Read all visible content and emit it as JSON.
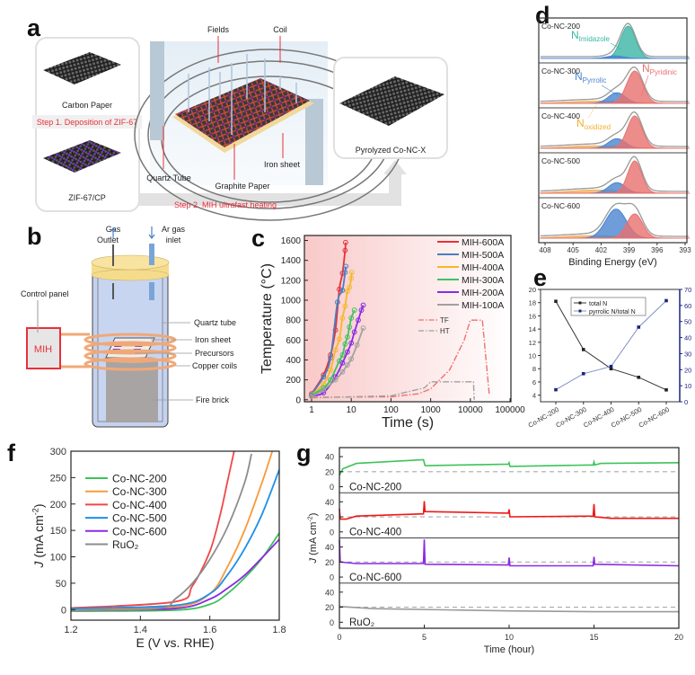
{
  "panel_labels": {
    "a": "a",
    "b": "b",
    "c": "c",
    "d": "d",
    "e": "e",
    "f": "f",
    "g": "g"
  },
  "panel_a": {
    "carbon_paper": "Carbon Paper",
    "step1": "Step 1. Deposition of ZIF-67",
    "zif_cp": "ZIF-67/CP",
    "fields": "Fields",
    "coil": "Coil",
    "quartz_tube": "Quartz Tube",
    "graphite_paper": "Graphite Paper",
    "iron_sheet": "Iron sheet",
    "pyrolyzed": "Pyrolyzed Co-NC-X",
    "step2": "Step 2. MIH ultrafast heating"
  },
  "panel_b": {
    "gas_outlet_1": "Gas",
    "gas_outlet_2": "Outlet",
    "ar_inlet_1": "Ar gas",
    "ar_inlet_2": "inlet",
    "control_panel": "Control panel",
    "mih": "MIH",
    "quartz_tube": "Quartz tube",
    "iron_sheet": "Iron sheet",
    "precursors": "Precursors",
    "copper_coils": "Copper coils",
    "fire_brick": "Fire brick"
  },
  "colors": {
    "red": "#e8303a",
    "green": "#3cc45a",
    "orange": "#f79a3a",
    "blue": "#1e8ee8",
    "purple": "#8a2be2",
    "gray": "#9a9a9a",
    "teal": "#3ab5a5",
    "pyridinic": "#e8706e",
    "pyrrolic": "#4a84d0",
    "oxidized": "#f0b060"
  },
  "chart_data": [
    {
      "panel": "c",
      "type": "line",
      "xlabel": "Time (s)",
      "ylabel": "Temperature (°C)",
      "xscale": "log",
      "xlim": [
        0.66,
        105000
      ],
      "ylim": [
        -20,
        1650
      ],
      "xticks": [
        1,
        10,
        100,
        1000,
        10000,
        100000
      ],
      "xtick_labels": [
        "1",
        "10",
        "100",
        "1000",
        "10000",
        "100000"
      ],
      "yticks": [
        0,
        200,
        400,
        600,
        800,
        1000,
        1200,
        1400,
        1600
      ],
      "legend": "top-right",
      "series": [
        {
          "name": "MIH-600A",
          "color": "#e8303a",
          "markers": true,
          "points": [
            [
              1,
              60
            ],
            [
              2,
              250
            ],
            [
              3,
              450
            ],
            [
              4,
              700
            ],
            [
              5,
              1110
            ],
            [
              6,
              1270
            ],
            [
              7,
              1500
            ],
            [
              7.2,
              1580
            ]
          ]
        },
        {
          "name": "MIH-500A",
          "color": "#4a7fc0",
          "markers": true,
          "points": [
            [
              1,
              55
            ],
            [
              2,
              230
            ],
            [
              3,
              420
            ],
            [
              4.5,
              980
            ],
            [
              6,
              1100
            ],
            [
              7,
              1280
            ],
            [
              7.3,
              1340
            ]
          ]
        },
        {
          "name": "MIH-400A",
          "color": "#f5b82a",
          "markers": true,
          "points": [
            [
              1,
              50
            ],
            [
              2,
              160
            ],
            [
              3,
              300
            ],
            [
              4,
              500
            ],
            [
              5,
              610
            ],
            [
              6,
              820
            ],
            [
              7,
              940
            ],
            [
              8,
              1090
            ],
            [
              9,
              1130
            ],
            [
              10,
              1220
            ],
            [
              10.3,
              1280
            ]
          ]
        },
        {
          "name": "MIH-300A",
          "color": "#3cc45a",
          "markers": true,
          "points": [
            [
              1,
              45
            ],
            [
              2,
              120
            ],
            [
              3,
              200
            ],
            [
              5,
              390
            ],
            [
              6,
              450
            ],
            [
              7,
              560
            ],
            [
              8,
              630
            ],
            [
              9,
              730
            ],
            [
              10,
              820
            ],
            [
              12,
              900
            ]
          ]
        },
        {
          "name": "MIH-200A",
          "color": "#8a2be2",
          "markers": true,
          "points": [
            [
              1,
              40
            ],
            [
              2,
              70
            ],
            [
              4,
              230
            ],
            [
              6,
              370
            ],
            [
              8,
              480
            ],
            [
              10,
              570
            ],
            [
              12,
              680
            ],
            [
              15,
              800
            ],
            [
              18,
              900
            ],
            [
              20,
              950
            ]
          ]
        },
        {
          "name": "MIH-100A",
          "color": "#a0a0a0",
          "markers": true,
          "points": [
            [
              1,
              35
            ],
            [
              2,
              100
            ],
            [
              4,
              200
            ],
            [
              6,
              280
            ],
            [
              8,
              350
            ],
            [
              10,
              410
            ],
            [
              14,
              550
            ],
            [
              20,
              720
            ]
          ]
        },
        {
          "name": "TF",
          "color": "#f07070",
          "dash": "dashdot",
          "markers": false,
          "points": [
            [
              1,
              25
            ],
            [
              100,
              30
            ],
            [
              500,
              60
            ],
            [
              1000,
              110
            ],
            [
              3000,
              300
            ],
            [
              7000,
              600
            ],
            [
              10000,
              800
            ],
            [
              20000,
              800
            ],
            [
              30000,
              50
            ]
          ]
        },
        {
          "name": "HT",
          "color": "#a0a0a0",
          "dash": "dashdot",
          "markers": false,
          "points": [
            [
              1,
              20
            ],
            [
              100,
              40
            ],
            [
              700,
              120
            ],
            [
              1000,
              180
            ],
            [
              10000,
              180
            ],
            [
              12000,
              180
            ],
            [
              12500,
              0
            ]
          ]
        }
      ]
    },
    {
      "panel": "d",
      "type": "area",
      "xlabel": "Binding Energy (eV)",
      "xlim": [
        408,
        393
      ],
      "xticks": [
        408,
        405,
        402,
        399,
        396,
        393
      ],
      "annotations": {
        "imidazole": {
          "base": "N",
          "sub": "Imidazole"
        },
        "pyrrolic": {
          "base": "N",
          "sub": "Pyrrolic"
        },
        "pyridinic": {
          "base": "N",
          "sub": "Pyridinic"
        },
        "oxidized": {
          "base": "N",
          "sub": "oxidized"
        }
      },
      "samples": [
        {
          "name": "Co-NC-200",
          "components": [
            {
              "type": "imidazole",
              "center": 399.1,
              "height": 1.0,
              "width": 0.8
            },
            {
              "type": "pyrrolic",
              "center": 400.5,
              "height": 0.08,
              "width": 0.9
            }
          ]
        },
        {
          "name": "Co-NC-300",
          "components": [
            {
              "type": "oxidized",
              "center": 402.5,
              "height": 0.07,
              "width": 3
            },
            {
              "type": "pyrrolic",
              "center": 400.3,
              "height": 0.33,
              "width": 0.9
            },
            {
              "type": "pyridinic",
              "center": 398.4,
              "height": 1.0,
              "width": 0.85
            }
          ]
        },
        {
          "name": "Co-NC-400",
          "components": [
            {
              "type": "oxidized",
              "center": 402.5,
              "height": 0.08,
              "width": 3
            },
            {
              "type": "pyrrolic",
              "center": 400.3,
              "height": 0.3,
              "width": 0.9
            },
            {
              "type": "pyridinic",
              "center": 398.4,
              "height": 1.0,
              "width": 0.8
            }
          ]
        },
        {
          "name": "Co-NC-500",
          "components": [
            {
              "type": "oxidized",
              "center": 402.5,
              "height": 0.1,
              "width": 3
            },
            {
              "type": "pyrrolic",
              "center": 400.3,
              "height": 0.33,
              "width": 0.9
            },
            {
              "type": "pyridinic",
              "center": 398.4,
              "height": 1.0,
              "width": 0.75
            }
          ]
        },
        {
          "name": "Co-NC-600",
          "components": [
            {
              "type": "oxidized",
              "center": 403,
              "height": 0.08,
              "width": 3
            },
            {
              "type": "pyrrolic",
              "center": 400.4,
              "height": 0.9,
              "width": 1.1
            },
            {
              "type": "pyridinic",
              "center": 398.4,
              "height": 0.75,
              "width": 0.85
            }
          ]
        }
      ]
    },
    {
      "panel": "e",
      "type": "line",
      "categories": [
        "Co-NC-200",
        "Co-NC-300",
        "Co-NC-400",
        "Co-NC-500",
        "Co-NC-600"
      ],
      "ylim_left": [
        3,
        20
      ],
      "yticks_left": [
        4,
        6,
        8,
        10,
        12,
        14,
        16,
        18,
        20
      ],
      "ylim_right": [
        0,
        70
      ],
      "yticks_right": [
        0,
        10,
        20,
        30,
        40,
        50,
        60,
        70
      ],
      "legend": "top-center",
      "series": [
        {
          "name": "total N",
          "axis": "left",
          "color": "#333333",
          "values": [
            18.2,
            10.9,
            8.0,
            6.7,
            4.8
          ]
        },
        {
          "name": "pyrrolic N/total N",
          "axis": "right",
          "color": "#8090c8",
          "values": [
            7.5,
            17.5,
            22,
            46.5,
            63
          ]
        }
      ]
    },
    {
      "panel": "f",
      "type": "line",
      "xlabel": "E (V vs. RHE)",
      "ylabel": {
        "italic": "J",
        "text": " (mA cm",
        "sup": "-2",
        "close": ")"
      },
      "xlim": [
        1.2,
        1.8
      ],
      "ylim": [
        -20,
        300
      ],
      "xticks": [
        1.2,
        1.4,
        1.6,
        1.8
      ],
      "xtick_labels": [
        "1.2",
        "1.4",
        "1.6",
        "1.8"
      ],
      "yticks": [
        0,
        50,
        100,
        150,
        200,
        250,
        300
      ],
      "legend": "top-left",
      "series": [
        {
          "name": "Co-NC-200",
          "color": "#3cc45a",
          "points": [
            [
              1.2,
              -3
            ],
            [
              1.5,
              -1
            ],
            [
              1.6,
              10
            ],
            [
              1.65,
              30
            ],
            [
              1.7,
              60
            ],
            [
              1.75,
              97
            ],
            [
              1.8,
              145
            ]
          ]
        },
        {
          "name": "Co-NC-300",
          "color": "#f79a3a",
          "points": [
            [
              1.2,
              0
            ],
            [
              1.5,
              5
            ],
            [
              1.6,
              30
            ],
            [
              1.65,
              80
            ],
            [
              1.7,
              150
            ],
            [
              1.75,
              240
            ],
            [
              1.78,
              300
            ]
          ]
        },
        {
          "name": "Co-NC-400",
          "color": "#f04848",
          "points": [
            [
              1.2,
              3
            ],
            [
              1.5,
              15
            ],
            [
              1.55,
              45
            ],
            [
              1.6,
              110
            ],
            [
              1.63,
              180
            ],
            [
              1.65,
              240
            ],
            [
              1.67,
              300
            ]
          ]
        },
        {
          "name": "Co-NC-500",
          "color": "#1e8ee8",
          "points": [
            [
              1.2,
              2
            ],
            [
              1.5,
              8
            ],
            [
              1.6,
              30
            ],
            [
              1.65,
              65
            ],
            [
              1.7,
              115
            ],
            [
              1.75,
              180
            ],
            [
              1.8,
              265
            ]
          ]
        },
        {
          "name": "Co-NC-600",
          "color": "#8a2be2",
          "points": [
            [
              1.2,
              -2
            ],
            [
              1.5,
              2
            ],
            [
              1.6,
              20
            ],
            [
              1.65,
              40
            ],
            [
              1.7,
              65
            ],
            [
              1.75,
              98
            ],
            [
              1.8,
              133
            ]
          ]
        },
        {
          "name": "RuO₂",
          "color": "#8c8c8c",
          "points": [
            [
              1.2,
              -2
            ],
            [
              1.45,
              2
            ],
            [
              1.5,
              20
            ],
            [
              1.55,
              50
            ],
            [
              1.6,
              95
            ],
            [
              1.65,
              155
            ],
            [
              1.7,
              240
            ],
            [
              1.72,
              295
            ]
          ]
        }
      ]
    },
    {
      "panel": "g",
      "type": "line",
      "xlabel": "Time (hour)",
      "ylabel": {
        "italic": "J",
        "text": " (mA cm",
        "sup": "-2",
        "close": ")"
      },
      "xlim": [
        0,
        20
      ],
      "xticks": [
        0,
        5,
        10,
        15,
        20
      ],
      "ylim": [
        -8,
        52
      ],
      "yticks": [
        0,
        20,
        40
      ],
      "reference_line": 20,
      "series": [
        {
          "name": "Co-NC-200",
          "color": "#3cc45a",
          "points": [
            [
              0,
              15
            ],
            [
              0.2,
              24
            ],
            [
              1,
              31
            ],
            [
              4.95,
              36
            ],
            [
              5.05,
              28
            ],
            [
              9.95,
              30
            ],
            [
              10,
              32
            ],
            [
              10.05,
              27
            ],
            [
              14.95,
              29
            ],
            [
              15,
              33
            ],
            [
              15.05,
              29
            ],
            [
              15.4,
              31
            ],
            [
              20,
              32
            ]
          ]
        },
        {
          "name": "Co-NC-400",
          "color": "#f01818",
          "points": [
            [
              0,
              31
            ],
            [
              0.05,
              17
            ],
            [
              0.4,
              17
            ],
            [
              1,
              21
            ],
            [
              4.95,
              24
            ],
            [
              5,
              41
            ],
            [
              5.05,
              27
            ],
            [
              9.95,
              25
            ],
            [
              10,
              30
            ],
            [
              10.05,
              20
            ],
            [
              14.95,
              21
            ],
            [
              15,
              37
            ],
            [
              15.05,
              20
            ],
            [
              16,
              18
            ],
            [
              20,
              18
            ]
          ]
        },
        {
          "name": "Co-NC-600",
          "color": "#8a2be2",
          "points": [
            [
              0,
              50
            ],
            [
              0.05,
              20
            ],
            [
              1,
              18
            ],
            [
              4.95,
              18
            ],
            [
              5,
              50
            ],
            [
              5.05,
              17
            ],
            [
              9.95,
              16
            ],
            [
              10,
              26
            ],
            [
              10.05,
              15
            ],
            [
              14.95,
              15
            ],
            [
              15,
              27
            ],
            [
              15.05,
              17
            ],
            [
              20,
              15
            ]
          ]
        },
        {
          "name": "RuO₂",
          "color": "#9a9a9a",
          "points": [
            [
              0,
              21
            ],
            [
              2,
              18
            ],
            [
              10,
              15
            ],
            [
              15,
              14
            ],
            [
              20,
              14
            ]
          ]
        }
      ]
    }
  ]
}
